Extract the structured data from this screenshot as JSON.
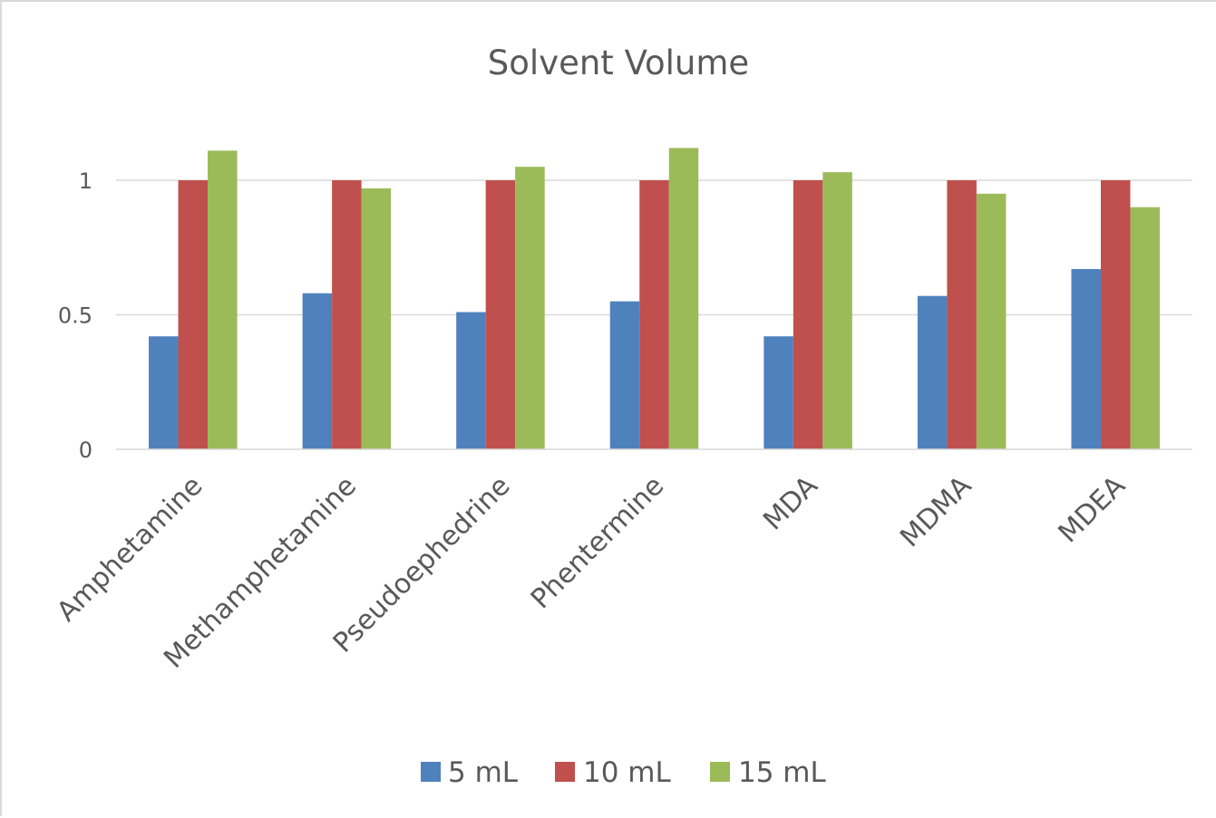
{
  "chart_data": {
    "type": "bar",
    "title": "Solvent Volume",
    "xlabel": "",
    "ylabel": "",
    "categories": [
      "Amphetamine",
      "Methamphetamine",
      "Pseudoephedrine",
      "Phentermine",
      "MDA",
      "MDMA",
      "MDEA"
    ],
    "series": [
      {
        "name": "5 mL",
        "color": "#4F81BD",
        "values": [
          0.42,
          0.58,
          0.51,
          0.55,
          0.42,
          0.57,
          0.67
        ]
      },
      {
        "name": "10 mL",
        "color": "#C0504D",
        "values": [
          1.0,
          1.0,
          1.0,
          1.0,
          1.0,
          1.0,
          1.0
        ]
      },
      {
        "name": "15 mL",
        "color": "#9BBB59",
        "values": [
          1.11,
          0.97,
          1.05,
          1.12,
          1.03,
          0.95,
          0.9
        ]
      }
    ],
    "ylim": [
      0,
      1.25
    ],
    "yticks": [
      0,
      0.5,
      1
    ],
    "ytick_labels": [
      "0",
      "0.5",
      "1"
    ],
    "grid": true,
    "legend_position": "bottom"
  }
}
